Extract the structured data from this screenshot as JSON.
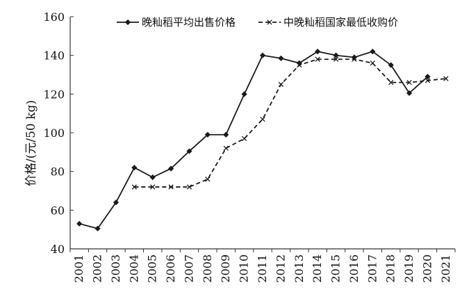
{
  "chart_data": {
    "type": "line",
    "title": "",
    "xlabel": "",
    "ylabel": "价格/(元/50 kg)",
    "ylim": [
      40,
      160
    ],
    "yticks": [
      40,
      60,
      80,
      100,
      120,
      140,
      160
    ],
    "grid": false,
    "legend_position": "top",
    "categories": [
      "2001",
      "2002",
      "2003",
      "2004",
      "2005",
      "2006",
      "2007",
      "2008",
      "2009",
      "2010",
      "2011",
      "2012",
      "2013",
      "2014",
      "2015",
      "2016",
      "2017",
      "2018",
      "2019",
      "2020",
      "2021"
    ],
    "series": [
      {
        "name": "晚籼稻平均出售价格",
        "style": "solid",
        "marker": "diamond",
        "color": "#1a1a1a",
        "values": [
          53,
          50.5,
          64,
          82,
          77,
          81.5,
          90.5,
          99,
          99,
          120,
          140,
          138.5,
          136,
          142,
          140,
          139,
          142,
          135,
          120.5,
          129,
          null
        ]
      },
      {
        "name": "中晚籼稻国家最低收购价",
        "style": "dashed",
        "marker": "x",
        "color": "#1a1a1a",
        "values": [
          null,
          null,
          null,
          72,
          72,
          72,
          72,
          76,
          92,
          97,
          107,
          125,
          135,
          138,
          138,
          138,
          136,
          126,
          126,
          127,
          128
        ]
      }
    ]
  }
}
